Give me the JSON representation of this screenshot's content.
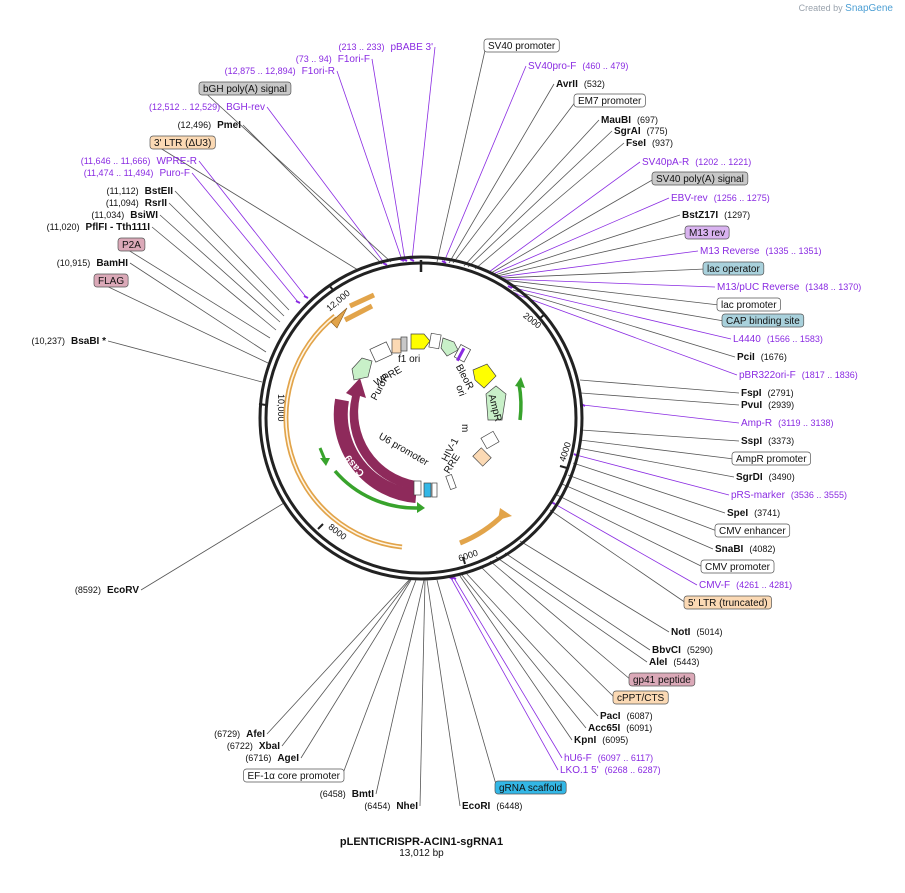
{
  "branding": {
    "created_by": "Created by",
    "app": "SnapGene"
  },
  "plasmid": {
    "name": "pLENTICRISPR-ACIN1-sgRNA1",
    "size": "13,012 bp"
  },
  "colors": {
    "enzyme": "#000000",
    "primer": "#8a2be2",
    "outline": "#222222",
    "grey_box": "#c8c8c8",
    "orange_box": "#fbd9b4",
    "pink_box": "#dba9b8",
    "blue_box": "#a9d1dc",
    "cyan_box": "#33b7e6",
    "purple_box": "#d9b3f0",
    "cas9": "#8e2a5b",
    "orange_arc": "#e2a44a",
    "green_arc": "#38a32c"
  },
  "ruler": [
    "2000",
    "4000",
    "6000",
    "8000",
    "10,000",
    "12,000"
  ],
  "inner_features": [
    "PuroR",
    "WPRE",
    "f1 ori",
    "BleoR",
    "ori",
    "AmpR",
    "m",
    "HIV-1",
    "RRE",
    "U6 promoter",
    "Cas9"
  ],
  "labels": [
    {
      "name": "SV40 promoter",
      "kind": "box-white"
    },
    {
      "name": "SV40pro-F",
      "pos": "(460 .. 479)",
      "kind": "primer"
    },
    {
      "name": "AvrII",
      "pos": "(532)",
      "kind": "enzyme"
    },
    {
      "name": "EM7 promoter",
      "kind": "box-white"
    },
    {
      "name": "MauBI",
      "pos": "(697)",
      "kind": "enzyme"
    },
    {
      "name": "SgrAI",
      "pos": "(775)",
      "kind": "enzyme"
    },
    {
      "name": "FseI",
      "pos": "(937)",
      "kind": "enzyme"
    },
    {
      "name": "SV40pA-R",
      "pos": "(1202 .. 1221)",
      "kind": "primer"
    },
    {
      "name": "SV40 poly(A) signal",
      "kind": "box-grey"
    },
    {
      "name": "EBV-rev",
      "pos": "(1256 .. 1275)",
      "kind": "primer"
    },
    {
      "name": "BstZ17I",
      "pos": "(1297)",
      "kind": "enzyme"
    },
    {
      "name": "M13 rev",
      "kind": "box-purple"
    },
    {
      "name": "M13 Reverse",
      "pos": "(1335 .. 1351)",
      "kind": "primer"
    },
    {
      "name": "lac operator",
      "kind": "box-blue"
    },
    {
      "name": "M13/pUC Reverse",
      "pos": "(1348 .. 1370)",
      "kind": "primer"
    },
    {
      "name": "lac promoter",
      "kind": "box-white"
    },
    {
      "name": "CAP binding site",
      "kind": "box-blue"
    },
    {
      "name": "L4440",
      "pos": "(1566 .. 1583)",
      "kind": "primer"
    },
    {
      "name": "PciI",
      "pos": "(1676)",
      "kind": "enzyme"
    },
    {
      "name": "pBR322ori-F",
      "pos": "(1817 .. 1836)",
      "kind": "primer"
    },
    {
      "name": "FspI",
      "pos": "(2791)",
      "kind": "enzyme"
    },
    {
      "name": "PvuI",
      "pos": "(2939)",
      "kind": "enzyme"
    },
    {
      "name": "Amp-R",
      "pos": "(3119 .. 3138)",
      "kind": "primer"
    },
    {
      "name": "SspI",
      "pos": "(3373)",
      "kind": "enzyme"
    },
    {
      "name": "AmpR promoter",
      "kind": "box-white"
    },
    {
      "name": "SgrDI",
      "pos": "(3490)",
      "kind": "enzyme"
    },
    {
      "name": "pRS-marker",
      "pos": "(3536 .. 3555)",
      "kind": "primer"
    },
    {
      "name": "SpeI",
      "pos": "(3741)",
      "kind": "enzyme"
    },
    {
      "name": "CMV enhancer",
      "kind": "box-white"
    },
    {
      "name": "SnaBI",
      "pos": "(4082)",
      "kind": "enzyme"
    },
    {
      "name": "CMV promoter",
      "kind": "box-white"
    },
    {
      "name": "CMV-F",
      "pos": "(4261 .. 4281)",
      "kind": "primer"
    },
    {
      "name": "5' LTR (truncated)",
      "kind": "box-orange"
    },
    {
      "name": "NotI",
      "pos": "(5014)",
      "kind": "enzyme"
    },
    {
      "name": "BbvCI",
      "pos": "(5290)",
      "kind": "enzyme"
    },
    {
      "name": "AleI",
      "pos": "(5443)",
      "kind": "enzyme"
    },
    {
      "name": "gp41 peptide",
      "kind": "box-pink"
    },
    {
      "name": "cPPT/CTS",
      "kind": "box-orange"
    },
    {
      "name": "PacI",
      "pos": "(6087)",
      "kind": "enzyme"
    },
    {
      "name": "Acc65I",
      "pos": "(6091)",
      "kind": "enzyme"
    },
    {
      "name": "KpnI",
      "pos": "(6095)",
      "kind": "enzyme"
    },
    {
      "name": "hU6-F",
      "pos": "(6097 .. 6117)",
      "kind": "primer"
    },
    {
      "name": "LKO.1 5'",
      "pos": "(6268 .. 6287)",
      "kind": "primer"
    },
    {
      "name": "gRNA scaffold",
      "kind": "box-cyan"
    },
    {
      "name": "EcoRI",
      "pos": "(6448)",
      "kind": "enzyme"
    },
    {
      "name": "NheI",
      "pos": "(6454)",
      "kind": "enzyme"
    },
    {
      "name": "BmtI",
      "pos": "(6458)",
      "kind": "enzyme"
    },
    {
      "name": "EF-1α core promoter",
      "kind": "box-white"
    },
    {
      "name": "AgeI",
      "pos": "(6716)",
      "kind": "enzyme"
    },
    {
      "name": "XbaI",
      "pos": "(6722)",
      "kind": "enzyme"
    },
    {
      "name": "AfeI",
      "pos": "(6729)",
      "kind": "enzyme"
    },
    {
      "name": "EcoRV",
      "pos": "(8592)",
      "kind": "enzyme"
    },
    {
      "name": "BsaBI *",
      "pos": "(10,237)",
      "kind": "enzyme"
    },
    {
      "name": "FLAG",
      "kind": "box-pink"
    },
    {
      "name": "BamHI",
      "pos": "(10,915)",
      "kind": "enzyme"
    },
    {
      "name": "P2A",
      "kind": "box-pink"
    },
    {
      "name": "PflFI - Tth111I",
      "pos": "(11,020)",
      "kind": "enzyme"
    },
    {
      "name": "BsiWI",
      "pos": "(11,034)",
      "kind": "enzyme"
    },
    {
      "name": "RsrII",
      "pos": "(11,094)",
      "kind": "enzyme"
    },
    {
      "name": "BstEII",
      "pos": "(11,112)",
      "kind": "enzyme"
    },
    {
      "name": "Puro-F",
      "pos": "(11,474 .. 11,494)",
      "kind": "primer"
    },
    {
      "name": "WPRE-R",
      "pos": "(11,646 .. 11,666)",
      "kind": "primer"
    },
    {
      "name": "3' LTR (ΔU3)",
      "kind": "box-orange"
    },
    {
      "name": "PmeI",
      "pos": "(12,496)",
      "kind": "enzyme"
    },
    {
      "name": "BGH-rev",
      "pos": "(12,512 .. 12,529)",
      "kind": "primer"
    },
    {
      "name": "bGH poly(A) signal",
      "kind": "box-grey"
    },
    {
      "name": "F1ori-R",
      "pos": "(12,875 .. 12,894)",
      "kind": "primer"
    },
    {
      "name": "F1ori-F",
      "pos": "(73 .. 94)",
      "kind": "primer"
    },
    {
      "name": "pBABE 3'",
      "pos": "(213 .. 233)",
      "kind": "primer"
    }
  ]
}
